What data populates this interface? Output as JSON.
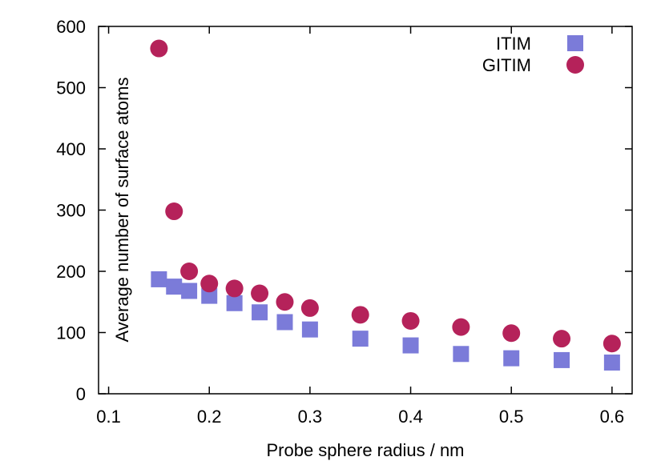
{
  "chart_data": {
    "type": "scatter",
    "title": "",
    "xlabel": "Probe sphere radius / nm",
    "ylabel": "Average number of surface atoms",
    "xlim": [
      0.09,
      0.62
    ],
    "ylim": [
      0,
      600
    ],
    "xticks": [
      0.1,
      0.2,
      0.3,
      0.4,
      0.5,
      0.6
    ],
    "xtick_labels": [
      "0.1",
      "0.2",
      "0.3",
      "0.4",
      "0.5",
      "0.6"
    ],
    "yticks": [
      0,
      100,
      200,
      300,
      400,
      500,
      600
    ],
    "ytick_labels": [
      "0",
      "100",
      "200",
      "300",
      "400",
      "500",
      "600"
    ],
    "grid": false,
    "legend_position": "top-right",
    "series": [
      {
        "name": "ITIM",
        "marker": "square",
        "color": "#7b7bd9",
        "x": [
          0.15,
          0.165,
          0.18,
          0.2,
          0.225,
          0.25,
          0.275,
          0.3,
          0.35,
          0.4,
          0.45,
          0.5,
          0.55,
          0.6
        ],
        "y": [
          187,
          175,
          168,
          160,
          148,
          133,
          117,
          105,
          90,
          79,
          65,
          58,
          55,
          51
        ]
      },
      {
        "name": "GITIM",
        "marker": "circle",
        "color": "#b5225a",
        "x": [
          0.15,
          0.165,
          0.18,
          0.2,
          0.225,
          0.25,
          0.275,
          0.3,
          0.35,
          0.4,
          0.45,
          0.5,
          0.55,
          0.6
        ],
        "y": [
          564,
          298,
          200,
          180,
          172,
          164,
          150,
          140,
          129,
          119,
          109,
          99,
          90,
          82
        ]
      }
    ]
  }
}
